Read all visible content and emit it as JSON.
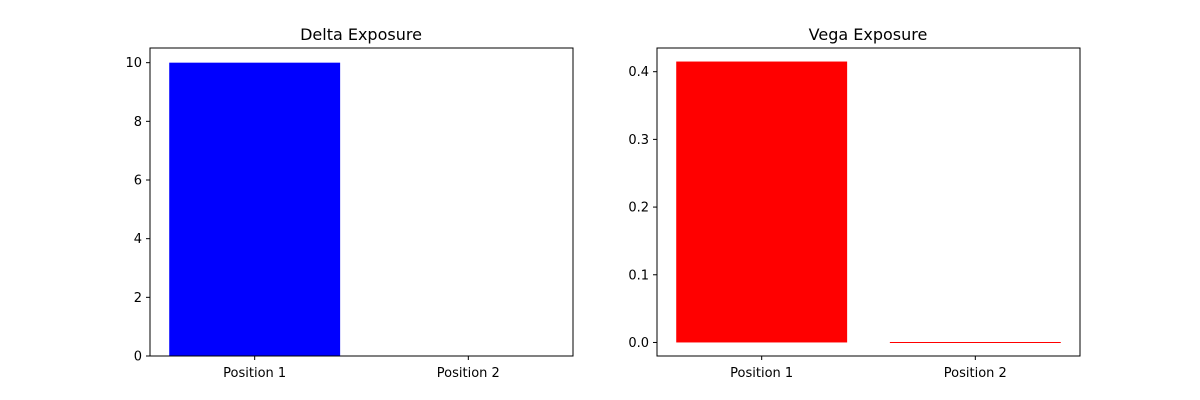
{
  "chart_data": [
    {
      "type": "bar",
      "title": "Delta Exposure",
      "categories": [
        "Position 1",
        "Position 2"
      ],
      "values": [
        10,
        0
      ],
      "color": "#0000ff",
      "ylim": [
        0,
        10.5
      ],
      "yticks": [
        0,
        2,
        4,
        6,
        8,
        10
      ],
      "ytick_labels": [
        "0",
        "2",
        "4",
        "6",
        "8",
        "10"
      ],
      "xlabel": "",
      "ylabel": "",
      "grid": false
    },
    {
      "type": "bar",
      "title": "Vega Exposure",
      "categories": [
        "Position 1",
        "Position 2"
      ],
      "values": [
        0.415,
        0
      ],
      "color": "#ff0000",
      "ylim": [
        -0.02,
        0.435
      ],
      "yticks": [
        0,
        0.1,
        0.2,
        0.3,
        0.4
      ],
      "ytick_labels": [
        "0.0",
        "0.1",
        "0.2",
        "0.3",
        "0.4"
      ],
      "xlabel": "",
      "ylabel": "",
      "grid": false
    }
  ]
}
